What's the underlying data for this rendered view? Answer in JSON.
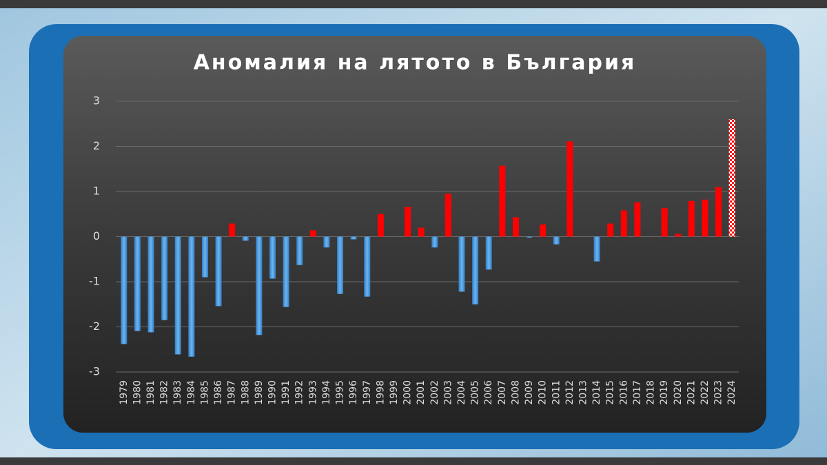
{
  "chart_data": {
    "type": "bar",
    "title": "Аномалия на лятото в България",
    "categories": [
      "1979",
      "1980",
      "1981",
      "1982",
      "1983",
      "1984",
      "1985",
      "1986",
      "1987",
      "1988",
      "1989",
      "1990",
      "1991",
      "1992",
      "1993",
      "1994",
      "1995",
      "1996",
      "1997",
      "1998",
      "1999",
      "2000",
      "2001",
      "2002",
      "2003",
      "2004",
      "2005",
      "2006",
      "2007",
      "2008",
      "2009",
      "2010",
      "2011",
      "2012",
      "2013",
      "2014",
      "2015",
      "2016",
      "2017",
      "2018",
      "2019",
      "2020",
      "2021",
      "2022",
      "2023",
      "2024"
    ],
    "values": [
      -2.38,
      -2.09,
      -2.12,
      -1.85,
      -2.61,
      -2.66,
      -0.9,
      -1.54,
      0.29,
      -0.09,
      -2.18,
      -0.93,
      -1.56,
      -0.63,
      0.14,
      -0.24,
      -1.27,
      -0.06,
      -1.33,
      0.5,
      0,
      0.66,
      0.2,
      -0.24,
      0.95,
      -1.22,
      -1.5,
      -0.73,
      1.57,
      0.43,
      -0.02,
      0.27,
      -0.17,
      2.11,
      0,
      -0.55,
      0.29,
      0.58,
      0.76,
      0,
      0.63,
      0.06,
      0.79,
      0.82,
      1.1,
      2.6
    ],
    "positive_color": "#ff0000",
    "negative_color": "#3d8fd6",
    "last_bar_pattern": "checkered",
    "ylim": [
      -3,
      3
    ],
    "yticks": [
      -3,
      -2,
      -1,
      0,
      1,
      2,
      3
    ],
    "grid": true
  }
}
